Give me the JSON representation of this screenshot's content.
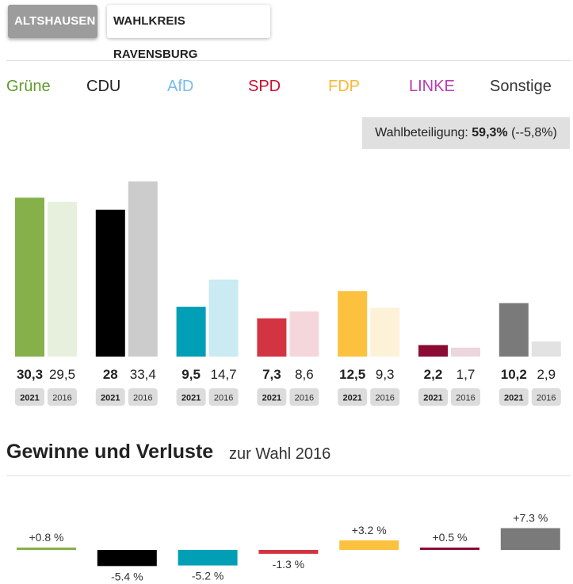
{
  "tabs": {
    "active_label": "ALTSHAUSEN",
    "inactive_label": "WAHLKREIS RAVENSBURG"
  },
  "turnout": {
    "label": "Wahlbeteiligung:",
    "value": "59,3%",
    "change": "(--5,8%)"
  },
  "gains_section": {
    "title": "Gewinne und Verluste",
    "subtitle": "zur Wahl 2016"
  },
  "chart_data": [
    {
      "type": "bar",
      "title": "",
      "categories": [
        "Grüne",
        "CDU",
        "AfD",
        "SPD",
        "FDP",
        "LINKE",
        "Sonstige"
      ],
      "series": [
        {
          "name": "2021",
          "values": [
            30.3,
            28,
            9.5,
            7.3,
            12.5,
            2.2,
            10.2
          ],
          "labels": [
            "30,3",
            "28",
            "9,5",
            "7,3",
            "12,5",
            "2,2",
            "10,2"
          ]
        },
        {
          "name": "2016",
          "values": [
            29.5,
            33.4,
            14.7,
            8.6,
            9.3,
            1.7,
            2.9
          ],
          "labels": [
            "29,5",
            "33,4",
            "14,7",
            "8,6",
            "9,3",
            "1,7",
            "2,9"
          ]
        }
      ],
      "colors_2021": [
        "#86b04a",
        "#000000",
        "#009fb5",
        "#d23441",
        "#fcc13e",
        "#8b0b35",
        "#7a7a7a"
      ],
      "colors_2016": [
        "#e7f0dc",
        "#cccccc",
        "#c9ebf1",
        "#f5d6da",
        "#fdf1d8",
        "#ecd6de",
        "#e2e2e2"
      ],
      "legend_colors": [
        "#5e9b2b",
        "#222222",
        "#76bde8",
        "#c8102e",
        "#fcb735",
        "#b63dae",
        "#333333"
      ],
      "ylim": [
        0,
        34
      ],
      "xlabel": "",
      "ylabel": "",
      "grid": false,
      "legend": "top"
    },
    {
      "type": "bar",
      "title": "Gewinne und Verluste",
      "categories": [
        "Grüne",
        "CDU",
        "AfD",
        "SPD",
        "FDP",
        "LINKE",
        "Sonstige"
      ],
      "values": [
        0.8,
        -5.4,
        -5.2,
        -1.3,
        3.2,
        0.5,
        7.3
      ],
      "labels": [
        "+0.8 %",
        "-5.4 %",
        "-5.2 %",
        "-1.3 %",
        "+3.2 %",
        "+0.5 %",
        "+7.3 %"
      ],
      "colors": [
        "#86b04a",
        "#000000",
        "#009fb5",
        "#d23441",
        "#fcc13e",
        "#8b0b35",
        "#7a7a7a"
      ],
      "ylim": [
        -5.4,
        7.3
      ],
      "xlabel": "",
      "ylabel": "",
      "grid": false
    }
  ]
}
